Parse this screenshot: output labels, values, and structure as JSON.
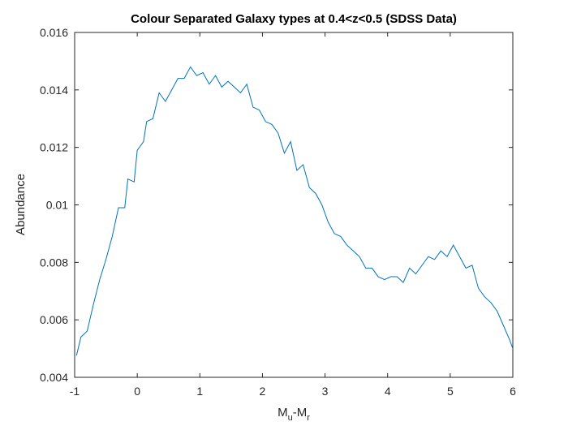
{
  "chart_data": {
    "type": "line",
    "title": "Colour Separated Galaxy types at 0.4<z<0.5 (SDSS Data)",
    "xlabel": [
      "M",
      "u",
      "-M",
      "r"
    ],
    "ylabel": "Abundance",
    "x": [
      -0.97,
      -0.9,
      -0.8,
      -0.7,
      -0.6,
      -0.5,
      -0.4,
      -0.3,
      -0.2,
      -0.15,
      -0.05,
      0,
      0.1,
      0.15,
      0.25,
      0.35,
      0.45,
      0.55,
      0.65,
      0.75,
      0.85,
      0.95,
      1.05,
      1.15,
      1.25,
      1.35,
      1.45,
      1.55,
      1.65,
      1.75,
      1.85,
      1.95,
      2.05,
      2.15,
      2.25,
      2.35,
      2.45,
      2.55,
      2.65,
      2.75,
      2.85,
      2.95,
      3.05,
      3.15,
      3.25,
      3.35,
      3.45,
      3.55,
      3.65,
      3.75,
      3.85,
      3.95,
      4.05,
      4.15,
      4.25,
      4.35,
      4.45,
      4.55,
      4.65,
      4.75,
      4.85,
      4.95,
      5.05,
      5.15,
      5.25,
      5.35,
      5.45,
      5.55,
      5.65,
      5.75,
      5.85,
      5.95,
      6.0
    ],
    "series": [
      {
        "color": "#0072bd",
        "values": [
          0.00476,
          0.0054,
          0.00561,
          0.00654,
          0.0074,
          0.0081,
          0.0089,
          0.0099,
          0.0099,
          0.0109,
          0.0108,
          0.0119,
          0.0122,
          0.0129,
          0.013,
          0.0139,
          0.0136,
          0.014,
          0.0144,
          0.0144,
          0.0148,
          0.0145,
          0.0146,
          0.0142,
          0.0145,
          0.0141,
          0.0143,
          0.0141,
          0.0139,
          0.0142,
          0.0134,
          0.0133,
          0.0129,
          0.0128,
          0.0125,
          0.0118,
          0.0122,
          0.0112,
          0.0114,
          0.0106,
          0.0104,
          0.01,
          0.0094,
          0.009,
          0.0089,
          0.0086,
          0.0084,
          0.0082,
          0.0078,
          0.0078,
          0.0075,
          0.0074,
          0.0075,
          0.0075,
          0.0073,
          0.0078,
          0.0076,
          0.0079,
          0.0082,
          0.0081,
          0.0084,
          0.0082,
          0.0086,
          0.0082,
          0.0078,
          0.0079,
          0.0071,
          0.0068,
          0.0066,
          0.0063,
          0.0058,
          0.0053,
          0.005
        ]
      }
    ],
    "xlim": [
      -1,
      6
    ],
    "xticks": [
      -1,
      0,
      1,
      2,
      3,
      4,
      5,
      6
    ],
    "ylim": [
      0.004,
      0.016
    ],
    "yticks": [
      {
        "value": 0.004,
        "label": "0.004"
      },
      {
        "value": 0.006,
        "label": "0.006"
      },
      {
        "value": 0.008,
        "label": "0.008"
      },
      0.01,
      {
        "value": 0.012,
        "label": "0.012"
      },
      {
        "value": 0.014,
        "label": "0.014"
      },
      {
        "value": 0.016,
        "label": "0.016"
      }
    ],
    "grid": false
  }
}
